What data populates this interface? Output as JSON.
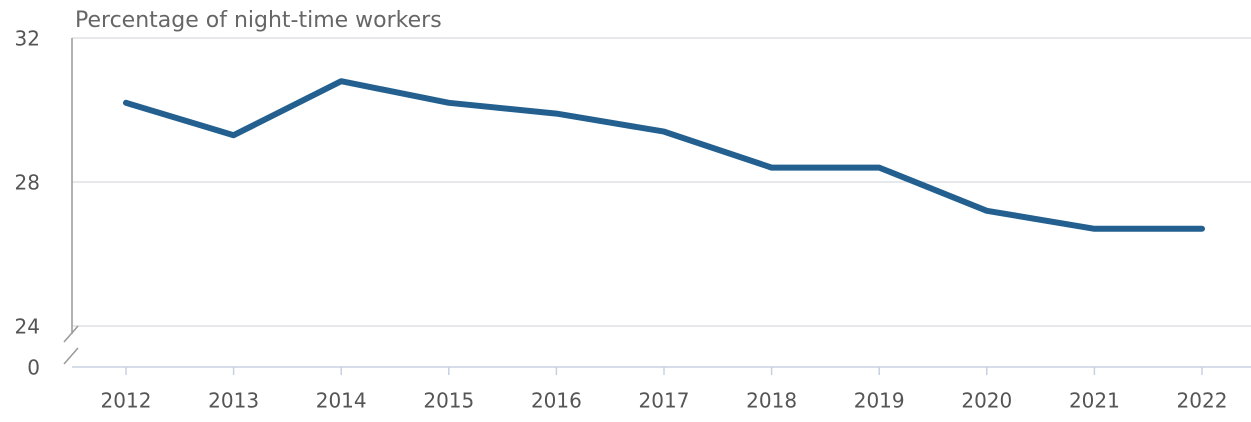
{
  "chart_data": {
    "type": "line",
    "title": "Percentage of night-time workers",
    "categories": [
      "2012",
      "2013",
      "2014",
      "2015",
      "2016",
      "2017",
      "2018",
      "2019",
      "2020",
      "2021",
      "2022"
    ],
    "series": [
      {
        "name": "Percentage of night-time workers",
        "color": "#23608f",
        "values": [
          30.2,
          29.3,
          30.8,
          30.2,
          29.9,
          29.4,
          28.4,
          28.4,
          27.2,
          26.7,
          26.7
        ]
      }
    ],
    "ylim": [
      24,
      32
    ],
    "yticks": [
      0,
      24,
      28,
      32
    ],
    "axis_break": true,
    "grid": true
  }
}
